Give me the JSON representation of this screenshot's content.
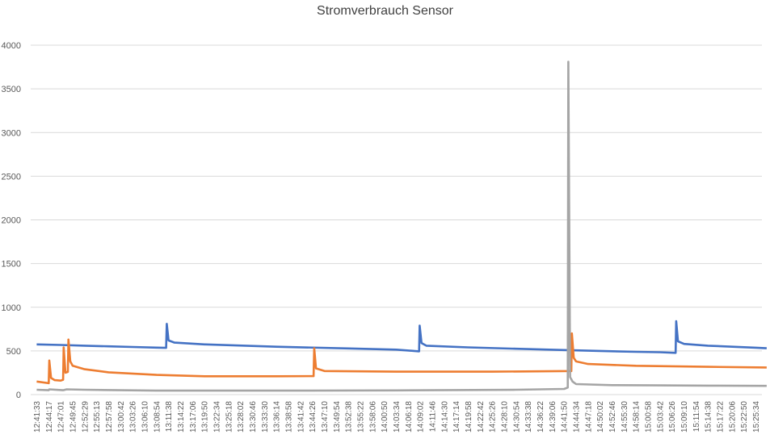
{
  "chart_data": {
    "type": "line",
    "title": "Stromverbrauch Sensor",
    "xlabel": "",
    "ylabel": "",
    "ylim": [
      0,
      4000
    ],
    "yticks": [
      0,
      500,
      1000,
      1500,
      2000,
      2500,
      3000,
      3500,
      4000
    ],
    "grid": true,
    "legend": "none",
    "x_categories": [
      "12:41:33",
      "12:44:17",
      "12:47:01",
      "12:49:45",
      "12:52:29",
      "12:55:13",
      "12:57:58",
      "13:00:42",
      "13:03:26",
      "13:06:10",
      "13:08:54",
      "13:11:38",
      "13:14:22",
      "13:17:06",
      "13:19:50",
      "13:22:34",
      "13:25:18",
      "13:28:02",
      "13:30:46",
      "13:33:30",
      "13:36:14",
      "13:38:58",
      "13:41:42",
      "13:44:26",
      "13:47:10",
      "13:49:54",
      "13:52:38",
      "13:55:22",
      "13:58:06",
      "14:00:50",
      "14:03:34",
      "14:06:18",
      "14:09:02",
      "14:11:46",
      "14:14:30",
      "14:17:14",
      "14:19:58",
      "14:22:42",
      "14:25:26",
      "14:28:10",
      "14:30:54",
      "14:33:38",
      "14:36:22",
      "14:39:06",
      "14:41:50",
      "14:44:34",
      "14:47:18",
      "14:50:02",
      "14:52:46",
      "14:55:30",
      "14:58:14",
      "15:00:58",
      "15:03:42",
      "15:06:26",
      "15:09:10",
      "15:11:54",
      "15:14:38",
      "15:17:22",
      "15:20:06",
      "15:22:50",
      "15:25:34"
    ],
    "series": [
      {
        "color": "#4472c4",
        "points": [
          [
            0,
            575
          ],
          [
            2,
            568
          ],
          [
            4,
            560
          ],
          [
            6,
            552
          ],
          [
            8,
            545
          ],
          [
            10,
            538
          ],
          [
            10.8,
            535
          ],
          [
            10.85,
            810
          ],
          [
            11,
            620
          ],
          [
            11.5,
            595
          ],
          [
            14,
            575
          ],
          [
            20,
            548
          ],
          [
            26,
            528
          ],
          [
            30,
            515
          ],
          [
            31.9,
            495
          ],
          [
            31.95,
            790
          ],
          [
            32.1,
            590
          ],
          [
            32.5,
            560
          ],
          [
            36,
            540
          ],
          [
            40,
            525
          ],
          [
            44,
            510
          ],
          [
            46,
            503
          ],
          [
            50,
            490
          ],
          [
            52,
            485
          ],
          [
            53.3,
            478
          ],
          [
            53.35,
            840
          ],
          [
            53.5,
            610
          ],
          [
            54,
            580
          ],
          [
            56,
            560
          ],
          [
            60,
            537
          ],
          [
            60.9,
            530
          ]
        ]
      },
      {
        "color": "#ed7d31",
        "points": [
          [
            0,
            150
          ],
          [
            1,
            130
          ],
          [
            1.05,
            390
          ],
          [
            1.2,
            190
          ],
          [
            1.5,
            165
          ],
          [
            2,
            160
          ],
          [
            2.2,
            170
          ],
          [
            2.25,
            540
          ],
          [
            2.4,
            250
          ],
          [
            2.6,
            260
          ],
          [
            2.65,
            630
          ],
          [
            2.8,
            380
          ],
          [
            3,
            330
          ],
          [
            4,
            290
          ],
          [
            6,
            255
          ],
          [
            10,
            225
          ],
          [
            14,
            210
          ],
          [
            20,
            210
          ],
          [
            23.1,
            212
          ],
          [
            23.15,
            530
          ],
          [
            23.3,
            300
          ],
          [
            24,
            270
          ],
          [
            30,
            262
          ],
          [
            38,
            262
          ],
          [
            44.6,
            270
          ],
          [
            44.65,
            700
          ],
          [
            44.8,
            420
          ],
          [
            45,
            380
          ],
          [
            46,
            350
          ],
          [
            50,
            330
          ],
          [
            56,
            318
          ],
          [
            60.9,
            310
          ]
        ]
      },
      {
        "color": "#a5a5a5",
        "points": [
          [
            0,
            55
          ],
          [
            1,
            50
          ],
          [
            1.05,
            60
          ],
          [
            2.2,
            50
          ],
          [
            2.5,
            60
          ],
          [
            4,
            55
          ],
          [
            10,
            45
          ],
          [
            20,
            45
          ],
          [
            30,
            48
          ],
          [
            40,
            55
          ],
          [
            44,
            65
          ],
          [
            44.3,
            80
          ],
          [
            44.35,
            3810
          ],
          [
            44.5,
            200
          ],
          [
            44.7,
            150
          ],
          [
            45,
            120
          ],
          [
            48,
            108
          ],
          [
            52,
            105
          ],
          [
            56,
            103
          ],
          [
            60.9,
            100
          ]
        ]
      }
    ]
  }
}
